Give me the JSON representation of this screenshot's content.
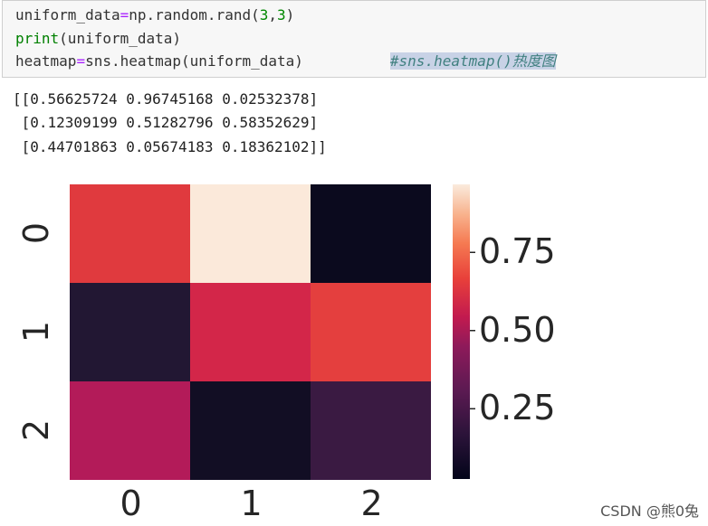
{
  "code": {
    "line1_a": "uniform_data",
    "line1_op": "=",
    "line1_b": "np.random.rand(",
    "line1_n1": "3",
    "line1_c": ",",
    "line1_n2": "3",
    "line1_d": ")",
    "line2_kw": "print",
    "line2_rest": "(uniform_data)",
    "line3_a": "heatmap",
    "line3_op": "=",
    "line3_b": "sns.heatmap(uniform_data)",
    "line3_comment": "#sns.heatmap()热度图"
  },
  "output": [
    "[[0.56625724 0.96745168 0.02532378]",
    " [0.12309199 0.51282796 0.58352629]",
    " [0.44701863 0.05674183 0.18362102]]"
  ],
  "watermark": "CSDN @熊0兔",
  "chart_data": {
    "type": "heatmap",
    "rows": [
      "0",
      "1",
      "2"
    ],
    "columns": [
      "0",
      "1",
      "2"
    ],
    "values": [
      [
        0.56625724,
        0.96745168,
        0.02532378
      ],
      [
        0.12309199,
        0.51282796,
        0.58352629
      ],
      [
        0.44701863,
        0.05674183,
        0.18362102
      ]
    ],
    "colormap": "rocket",
    "colorbar_ticks": [
      "0.25",
      "0.50",
      "0.75"
    ],
    "colorbar_tick_values": [
      0.25,
      0.5,
      0.75
    ],
    "vmin": 0.02532378,
    "vmax": 0.96745168,
    "colors": {
      "0.56625724": "#e03a3e",
      "0.96745168": "#fbe9da",
      "0.02532378": "#0b0a1e",
      "0.12309199": "#221733",
      "0.51282796": "#d32649",
      "0.58352629": "#e43f3e",
      "0.44701863": "#b31b59",
      "0.05674183": "#120e24",
      "0.18362102": "#3a1a42"
    }
  }
}
